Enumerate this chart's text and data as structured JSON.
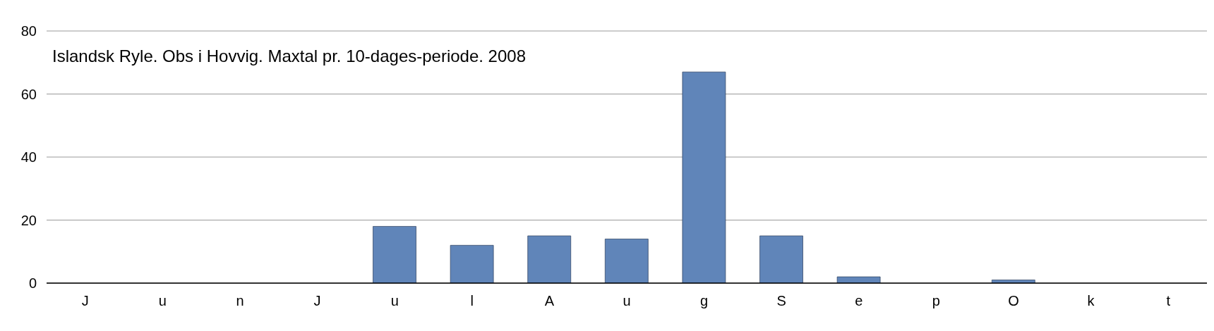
{
  "chart_data": {
    "type": "bar",
    "title": "Islandsk Ryle. Obs i Hovvig. Maxtal pr. 10-dages-periode. 2008",
    "categories": [
      "J",
      "u",
      "n",
      "J",
      "u",
      "l",
      "A",
      "u",
      "g",
      "S",
      "e",
      "p",
      "O",
      "k",
      "t"
    ],
    "values": [
      0,
      0,
      0,
      0,
      18,
      12,
      15,
      14,
      67,
      15,
      2,
      0,
      1,
      0,
      0
    ],
    "color": "#6085b9",
    "ylim": [
      0,
      80
    ],
    "yticks": [
      0,
      20,
      40,
      60,
      80
    ],
    "grid": "y"
  }
}
